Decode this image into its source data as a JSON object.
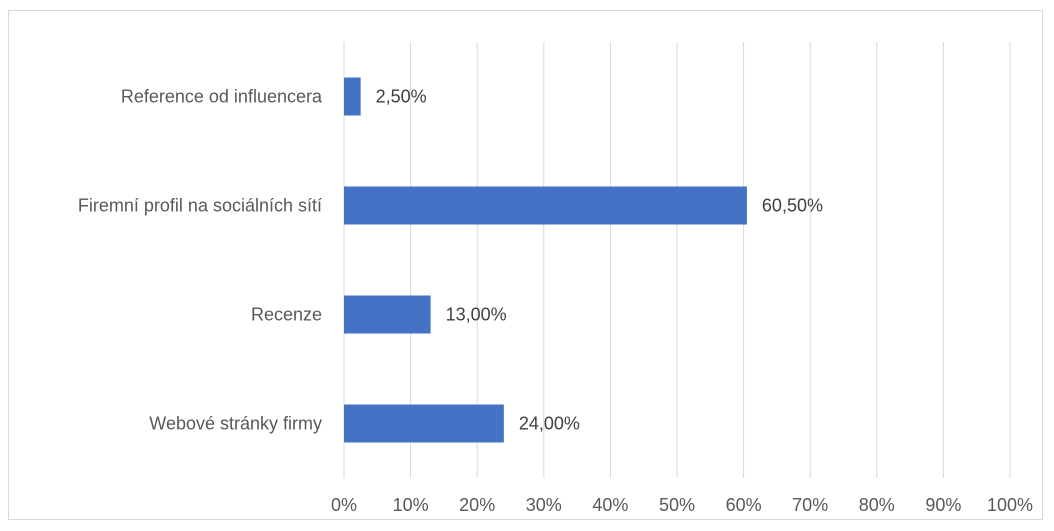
{
  "chart_data": {
    "type": "bar",
    "orientation": "horizontal",
    "categories": [
      "Webové stránky firmy",
      "Recenze",
      "Firemní profil na sociálních sítí",
      "Reference od influencera"
    ],
    "values": [
      24.0,
      13.0,
      60.5,
      2.5
    ],
    "data_labels": [
      "24,00%",
      "13,00%",
      "60,50%",
      "2,50%"
    ],
    "xlim": [
      0,
      100
    ],
    "x_ticks": [
      0,
      10,
      20,
      30,
      40,
      50,
      60,
      70,
      80,
      90,
      100
    ],
    "x_tick_labels": [
      "0%",
      "10%",
      "20%",
      "30%",
      "40%",
      "50%",
      "60%",
      "70%",
      "80%",
      "90%",
      "100%"
    ],
    "grid": true,
    "legend": "none",
    "colors": {
      "bar": "#4472c4",
      "grid": "#d9d9d9"
    }
  }
}
